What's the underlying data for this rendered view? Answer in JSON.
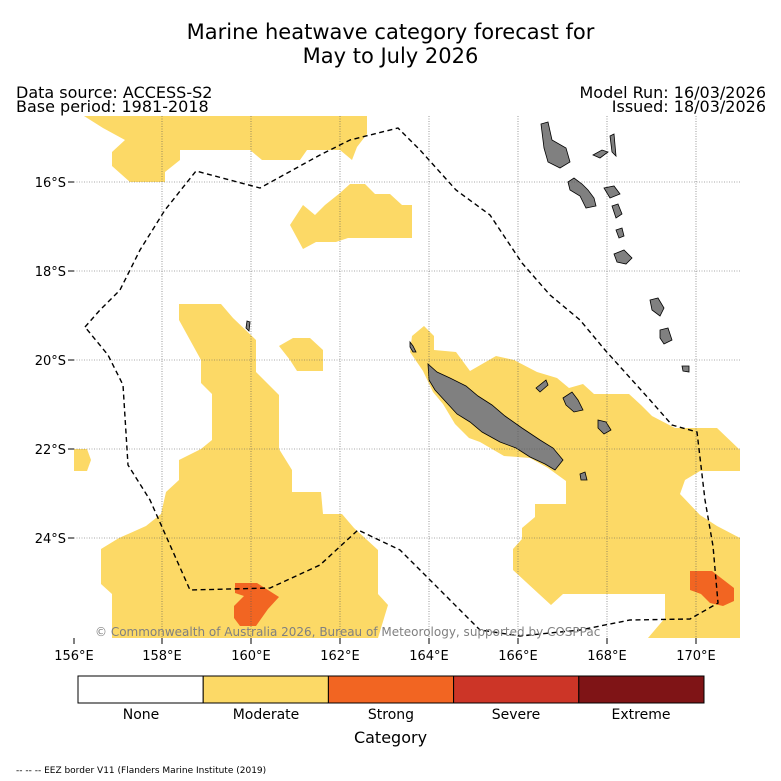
{
  "title_line1": "Marine heatwave category forecast for",
  "title_line2": "May to July 2026",
  "data_source": "Data source: ACCESS-S2",
  "base_period": "Base period: 1981-2018",
  "model_run": "Model Run: 16/03/2026",
  "issued": "Issued: 18/03/2026",
  "lat_labels": [
    "16°S",
    "18°S",
    "20°S",
    "22°S",
    "24°S"
  ],
  "lon_labels": [
    "156°E",
    "158°E",
    "160°E",
    "162°E",
    "164°E",
    "166°E",
    "168°E",
    "170°E"
  ],
  "copyright": "© Commonwealth of Australia 2026, Bureau of Meteorology, supported by COSPPac",
  "colorbar": {
    "title": "Category",
    "categories": [
      {
        "label": "None",
        "color": "#ffffff"
      },
      {
        "label": "Moderate",
        "color": "#fcd966"
      },
      {
        "label": "Strong",
        "color": "#f26522"
      },
      {
        "label": "Severe",
        "color": "#cc3527"
      },
      {
        "label": "Extreme",
        "color": "#7f1416"
      }
    ]
  },
  "eez_legend": "-- -- -- EEZ border V11 (Flanders Marine Institute (2019)",
  "colors": {
    "moderate": "#fcd966",
    "strong": "#f26522",
    "land": "#808080",
    "grid": "#555555"
  }
}
